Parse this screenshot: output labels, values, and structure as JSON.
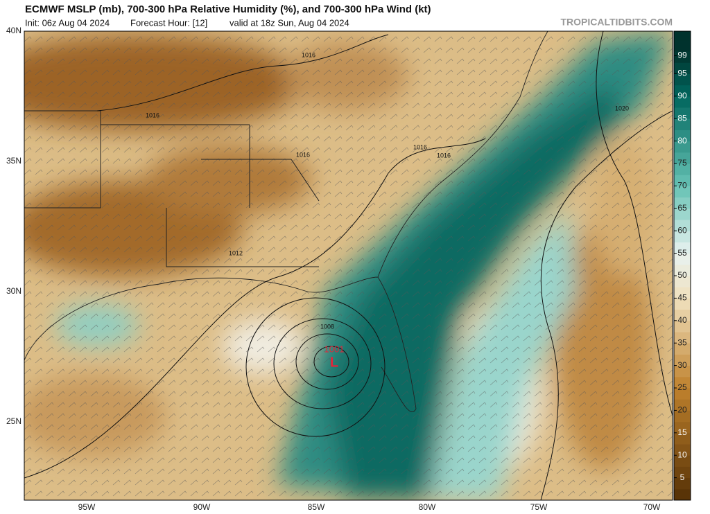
{
  "header": {
    "title": "ECMWF MSLP (mb), 700-300 hPa Relative Humidity (%), and 700-300 hPa Wind (kt)",
    "init": "Init: 06z Aug 04 2024",
    "forecast_hour": "Forecast Hour: [12]",
    "valid": "valid at 18z Sun, Aug 04 2024",
    "watermark": "TROPICALTIDBITS.COM"
  },
  "map": {
    "lat_labels": [
      "40N",
      "35N",
      "30N",
      "25N"
    ],
    "lon_labels": [
      "95W",
      "90W",
      "85W",
      "80W",
      "75W",
      "70W"
    ],
    "contour_labels": [
      "1016",
      "1016",
      "1016",
      "1016",
      "1016",
      "1012",
      "1008",
      "1020"
    ],
    "low_pressure": "1001",
    "low_marker": "L"
  },
  "colorbar": {
    "ticks": [
      5,
      10,
      15,
      20,
      25,
      30,
      35,
      40,
      45,
      50,
      55,
      60,
      65,
      70,
      75,
      80,
      85,
      90,
      95,
      99
    ]
  }
}
